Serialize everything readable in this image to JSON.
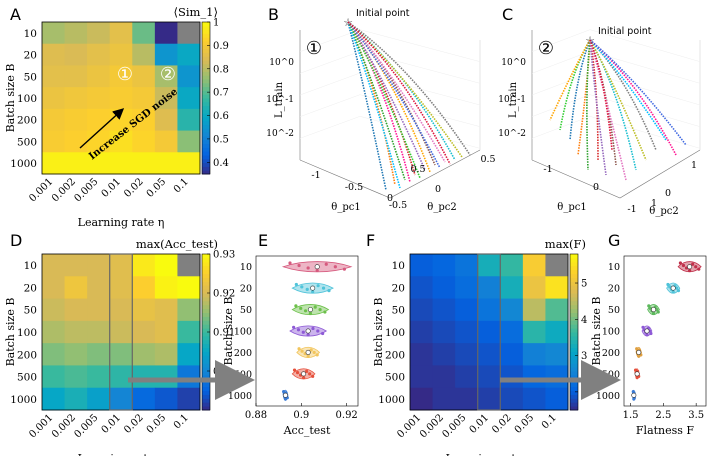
{
  "panels": {
    "a": "A",
    "b": "B",
    "c": "C",
    "d": "D",
    "e": "E",
    "f": "F",
    "g": "G"
  },
  "chart_data": [
    {
      "id": "A",
      "type": "heatmap",
      "title": "⟨Sim_1⟩",
      "xlabel": "Learning rate η",
      "ylabel": "Batch size B",
      "x": [
        "0.001",
        "0.002",
        "0.005",
        "0.01",
        "0.02",
        "0.05",
        "0.1"
      ],
      "y": [
        "10",
        "20",
        "50",
        "100",
        "200",
        "500",
        "1000"
      ],
      "values": [
        [
          0.78,
          0.8,
          0.82,
          0.86,
          0.72,
          0.3,
          null
        ],
        [
          0.85,
          0.84,
          0.86,
          0.88,
          0.8,
          0.55,
          0.6
        ],
        [
          0.86,
          0.86,
          0.88,
          0.9,
          0.88,
          0.78,
          0.55
        ],
        [
          0.88,
          0.89,
          0.9,
          0.91,
          0.9,
          0.82,
          0.6
        ],
        [
          0.9,
          0.91,
          0.92,
          0.93,
          0.92,
          0.85,
          0.65
        ],
        [
          0.91,
          0.92,
          0.93,
          0.95,
          0.93,
          0.9,
          0.75
        ],
        [
          0.98,
          0.98,
          0.98,
          0.98,
          0.98,
          0.98,
          0.98
        ]
      ],
      "colorbar": {
        "min": 0.35,
        "max": 1.0,
        "ticks": [
          "0.4",
          "0.5",
          "0.6",
          "0.7",
          "0.8",
          "0.9",
          "1"
        ]
      },
      "annotations": [
        "①",
        "②",
        "Increase SGD noise"
      ]
    },
    {
      "id": "B",
      "type": "line",
      "title": "Initial point",
      "marker": "①",
      "zlabel": "L_train",
      "xlabel": "θ_pc1",
      "ylabel": "θ_pc2",
      "z_ticks": [
        "10^0",
        "10^-1",
        "10^-2"
      ],
      "x_ticks": [
        "-1",
        "-0.5",
        "0",
        "0.5"
      ],
      "y_ticks": [
        "-0.5",
        "0",
        "0.5"
      ]
    },
    {
      "id": "C",
      "type": "line",
      "title": "Initial point",
      "marker": "②",
      "zlabel": "L_train",
      "xlabel": "θ_pc1",
      "ylabel": "θ_pc2",
      "z_ticks": [
        "10^0",
        "10^-1",
        "10^-2"
      ],
      "x_ticks": [
        "-1",
        "0",
        "1"
      ],
      "y_ticks": [
        "-1",
        "0",
        "1"
      ]
    },
    {
      "id": "D",
      "type": "heatmap",
      "title": "max(Acc_test)",
      "xlabel": "Learning rate η",
      "ylabel": "Batch size B",
      "x": [
        "0.001",
        "0.002",
        "0.005",
        "0.01",
        "0.02",
        "0.05",
        "0.1"
      ],
      "y": [
        "10",
        "20",
        "50",
        "100",
        "200",
        "500",
        "1000"
      ],
      "values": [
        [
          0.92,
          0.92,
          0.92,
          0.921,
          0.928,
          0.93,
          null
        ],
        [
          0.92,
          0.923,
          0.92,
          0.921,
          0.925,
          0.929,
          0.93
        ],
        [
          0.919,
          0.92,
          0.92,
          0.92,
          0.922,
          0.921,
          0.915
        ],
        [
          0.917,
          0.918,
          0.918,
          0.919,
          0.92,
          0.921,
          0.91
        ],
        [
          0.914,
          0.915,
          0.914,
          0.914,
          0.916,
          0.917,
          0.905
        ],
        [
          0.91,
          0.911,
          0.91,
          0.909,
          0.908,
          0.908,
          0.898
        ],
        [
          0.905,
          0.907,
          0.904,
          0.9,
          0.896,
          0.894,
          0.892
        ]
      ],
      "colorbar": {
        "min": 0.89,
        "max": 0.93,
        "ticks": [
          "0.93",
          "0.92",
          "0.91",
          "0.9"
        ]
      }
    },
    {
      "id": "E",
      "type": "violin",
      "xlabel": "Acc_test",
      "ylabel": "Batch size B",
      "categories": [
        "10",
        "20",
        "50",
        "100",
        "200",
        "500",
        "1000"
      ],
      "medians": [
        0.907,
        0.905,
        0.904,
        0.903,
        0.903,
        0.901,
        0.893
      ],
      "spreads": [
        0.015,
        0.009,
        0.008,
        0.008,
        0.005,
        0.005,
        0.001
      ],
      "colors": [
        "#d65a7e",
        "#4fc3d9",
        "#6cc04a",
        "#8e5ad6",
        "#f2c55c",
        "#e6503c",
        "#3a7bd5"
      ],
      "x_ticks": [
        "0.88",
        "0.9",
        "0.92"
      ],
      "xlim": [
        0.88,
        0.925
      ]
    },
    {
      "id": "F",
      "type": "heatmap",
      "title": "max(F)",
      "xlabel": "Learning rate η",
      "ylabel": "Batch size B",
      "x": [
        "0.001",
        "0.002",
        "0.005",
        "0.01",
        "0.02",
        "0.05",
        "0.1"
      ],
      "y": [
        "10",
        "20",
        "50",
        "100",
        "200",
        "500",
        "1000"
      ],
      "values": [
        [
          2.0,
          2.1,
          2.3,
          3.3,
          3.6,
          5.2,
          null
        ],
        [
          1.9,
          2.0,
          2.2,
          2.5,
          3.3,
          5.0,
          5.5
        ],
        [
          1.8,
          1.9,
          2.0,
          2.3,
          2.6,
          4.5,
          3.8
        ],
        [
          1.7,
          1.8,
          1.9,
          2.0,
          2.2,
          3.5,
          3.2
        ],
        [
          1.6,
          1.7,
          1.8,
          1.9,
          2.0,
          2.5,
          2.6
        ],
        [
          1.6,
          1.6,
          1.7,
          1.8,
          1.9,
          2.1,
          2.2
        ],
        [
          1.5,
          1.6,
          1.6,
          1.7,
          1.8,
          1.9,
          2.0
        ]
      ],
      "colorbar": {
        "min": 1.5,
        "max": 5.8,
        "ticks": [
          "5",
          "4",
          "3",
          "2"
        ]
      }
    },
    {
      "id": "G",
      "type": "violin",
      "xlabel": "Flatness F",
      "ylabel": "Batch size B",
      "categories": [
        "10",
        "20",
        "50",
        "100",
        "200",
        "500",
        "1000"
      ],
      "medians": [
        3.3,
        2.8,
        2.2,
        2.0,
        1.75,
        1.7,
        1.6
      ],
      "spreads": [
        0.35,
        0.2,
        0.18,
        0.15,
        0.08,
        0.06,
        0.02
      ],
      "colors": [
        "#c0304a",
        "#4fc3d9",
        "#5cb85c",
        "#8e5ad6",
        "#e0a040",
        "#e6503c",
        "#3a7bd5"
      ],
      "x_ticks": [
        "1.5",
        "2.5",
        "3.5"
      ],
      "xlim": [
        1.3,
        3.8
      ]
    }
  ]
}
